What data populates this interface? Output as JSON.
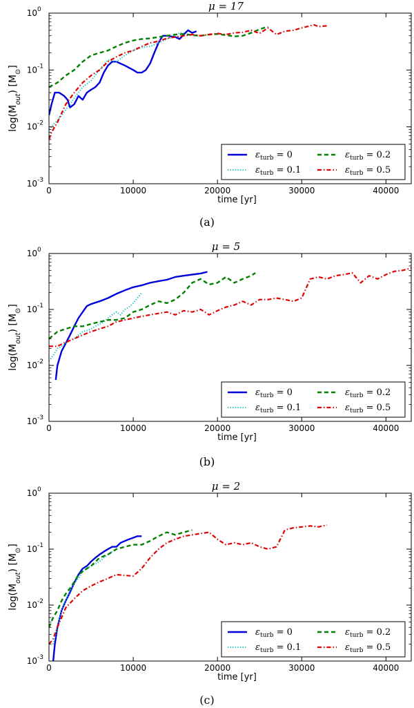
{
  "colors": {
    "eps0": "#0000dd",
    "eps01": "#00bfbf",
    "eps02": "#007f00",
    "eps05": "#e00000"
  },
  "common": {
    "xlabel": "time [yr]",
    "ylabel": "log(M_out) [M_sun]"
  },
  "chart_data": [
    {
      "type": "line",
      "title": "μ = 17",
      "caption": "(a)",
      "xlabel": "time [yr]",
      "ylabel": "log(M_out) [M_sun]",
      "yscale": "log",
      "xlim": [
        0,
        43000
      ],
      "ylim": [
        0.001,
        1
      ],
      "xticks": [
        0,
        10000,
        20000,
        30000,
        40000
      ],
      "xtick_labels": [
        "0",
        "10000",
        "20000",
        "30000",
        "40000"
      ],
      "ytick_labels": [
        "10",
        "10",
        "10",
        "10"
      ],
      "ytick_exponents": [
        "-3",
        "-2",
        "-1",
        "0"
      ],
      "legend": [
        {
          "label": "ε_turb = 0",
          "symbol": "ε",
          "sub": "turb",
          "value": " = 0"
        },
        {
          "label": "ε_turb = 0.2",
          "symbol": "ε",
          "sub": "turb",
          "value": " = 0.2"
        },
        {
          "label": "ε_turb = 0.1",
          "symbol": "ε",
          "sub": "turb",
          "value": " = 0.1"
        },
        {
          "label": "ε_turb = 0.5",
          "symbol": "ε",
          "sub": "turb",
          "value": " = 0.5"
        }
      ],
      "series": [
        {
          "name": "ε_turb = 0",
          "x": [
            0,
            300,
            700,
            1200,
            1800,
            2200,
            2500,
            3000,
            3500,
            4000,
            4500,
            5000,
            5500,
            6000,
            6500,
            7000,
            7500,
            8000,
            9000,
            10000,
            10500,
            11000,
            11500,
            12000,
            12500,
            13000,
            13500,
            14000,
            15000,
            15500,
            16000,
            16500,
            17000,
            17500
          ],
          "y": [
            0.016,
            0.025,
            0.04,
            0.04,
            0.035,
            0.03,
            0.022,
            0.025,
            0.035,
            0.03,
            0.04,
            0.045,
            0.05,
            0.06,
            0.09,
            0.12,
            0.14,
            0.14,
            0.12,
            0.1,
            0.09,
            0.09,
            0.1,
            0.13,
            0.2,
            0.3,
            0.4,
            0.4,
            0.38,
            0.35,
            0.42,
            0.5,
            0.45,
            0.48
          ]
        },
        {
          "name": "ε_turb = 0.1",
          "x": [
            0,
            500,
            1000,
            1500,
            2000,
            2500,
            3000,
            3500,
            4000,
            5000,
            6000,
            7000,
            8000,
            9000,
            10000,
            11000,
            12000,
            13000,
            14000,
            15000,
            15500,
            16000
          ],
          "y": [
            0.009,
            0.011,
            0.013,
            0.016,
            0.02,
            0.025,
            0.032,
            0.04,
            0.05,
            0.065,
            0.1,
            0.15,
            0.14,
            0.18,
            0.22,
            0.25,
            0.26,
            0.3,
            0.35,
            0.4,
            0.45,
            0.45
          ]
        },
        {
          "name": "ε_turb = 0.2",
          "x": [
            0,
            1000,
            2000,
            3000,
            4000,
            5000,
            6000,
            7000,
            8000,
            9000,
            10000,
            11000,
            12000,
            13000,
            14000,
            15000,
            16000,
            17000,
            18000,
            19000,
            20000,
            21000,
            22000,
            23000,
            24000,
            25000,
            26000
          ],
          "y": [
            0.05,
            0.06,
            0.08,
            0.1,
            0.14,
            0.18,
            0.2,
            0.22,
            0.26,
            0.3,
            0.33,
            0.35,
            0.36,
            0.38,
            0.4,
            0.42,
            0.43,
            0.41,
            0.4,
            0.42,
            0.43,
            0.41,
            0.39,
            0.4,
            0.45,
            0.52,
            0.58
          ]
        },
        {
          "name": "ε_turb = 0.5",
          "x": [
            0,
            300,
            1000,
            2000,
            3000,
            4000,
            5000,
            6000,
            7000,
            8000,
            9000,
            10000,
            11000,
            12000,
            13000,
            14000,
            15000,
            16000,
            17000,
            18000,
            19000,
            20000,
            21000,
            22000,
            23000,
            24000,
            25000,
            26000,
            27000,
            28000,
            29000,
            30000,
            31000,
            31500,
            32000,
            33000
          ],
          "y": [
            0.006,
            0.008,
            0.012,
            0.025,
            0.04,
            0.06,
            0.08,
            0.1,
            0.14,
            0.17,
            0.2,
            0.22,
            0.26,
            0.3,
            0.32,
            0.36,
            0.38,
            0.4,
            0.42,
            0.4,
            0.42,
            0.44,
            0.42,
            0.45,
            0.46,
            0.5,
            0.44,
            0.55,
            0.42,
            0.48,
            0.5,
            0.55,
            0.6,
            0.62,
            0.58,
            0.6
          ]
        }
      ]
    },
    {
      "type": "line",
      "title": "μ = 5",
      "caption": "(b)",
      "xlabel": "time [yr]",
      "ylabel": "log(M_out) [M_sun]",
      "yscale": "log",
      "xlim": [
        0,
        43000
      ],
      "ylim": [
        0.001,
        1
      ],
      "xticks": [
        0,
        10000,
        20000,
        30000,
        40000
      ],
      "xtick_labels": [
        "0",
        "10000",
        "20000",
        "30000",
        "40000"
      ],
      "ytick_labels": [
        "10",
        "10",
        "10",
        "10"
      ],
      "ytick_exponents": [
        "-3",
        "-2",
        "-1",
        "0"
      ],
      "legend": [
        {
          "label": "ε_turb = 0",
          "symbol": "ε",
          "sub": "turb",
          "value": " = 0"
        },
        {
          "label": "ε_turb = 0.2",
          "symbol": "ε",
          "sub": "turb",
          "value": " = 0.2"
        },
        {
          "label": "ε_turb = 0.1",
          "symbol": "ε",
          "sub": "turb",
          "value": " = 0.1"
        },
        {
          "label": "ε_turb = 0.5",
          "symbol": "ε",
          "sub": "turb",
          "value": " = 0.5"
        }
      ],
      "series": [
        {
          "name": "ε_turb = 0",
          "x": [
            800,
            1000,
            1500,
            2000,
            2500,
            3000,
            3500,
            4000,
            4500,
            5000,
            6000,
            7000,
            8000,
            9000,
            10000,
            11000,
            12000,
            13000,
            14000,
            15000,
            16000,
            17000,
            18000,
            18800
          ],
          "y": [
            0.0055,
            0.01,
            0.018,
            0.025,
            0.035,
            0.05,
            0.07,
            0.09,
            0.115,
            0.125,
            0.14,
            0.16,
            0.19,
            0.22,
            0.25,
            0.27,
            0.3,
            0.32,
            0.34,
            0.38,
            0.4,
            0.42,
            0.44,
            0.47
          ]
        },
        {
          "name": "ε_turb = 0.1",
          "x": [
            0,
            500,
            1000,
            1500,
            2000,
            2500,
            3000,
            3500,
            4000,
            4500,
            5000,
            5500,
            6000,
            6500,
            7000,
            7500,
            8000,
            8500,
            9000,
            9500,
            10000,
            10500,
            11000
          ],
          "y": [
            0.012,
            0.015,
            0.02,
            0.022,
            0.025,
            0.028,
            0.03,
            0.035,
            0.04,
            0.042,
            0.045,
            0.05,
            0.055,
            0.06,
            0.07,
            0.08,
            0.09,
            0.08,
            0.1,
            0.11,
            0.13,
            0.16,
            0.2
          ]
        },
        {
          "name": "ε_turb = 0.2",
          "x": [
            0,
            1000,
            2000,
            3000,
            4000,
            5000,
            6000,
            7000,
            8000,
            9000,
            10000,
            11000,
            12000,
            13000,
            14000,
            15000,
            16000,
            17000,
            18000,
            19000,
            20000,
            21000,
            22000,
            23000,
            24000,
            24500
          ],
          "y": [
            0.03,
            0.04,
            0.045,
            0.05,
            0.05,
            0.055,
            0.06,
            0.065,
            0.065,
            0.07,
            0.09,
            0.1,
            0.12,
            0.14,
            0.13,
            0.15,
            0.2,
            0.3,
            0.35,
            0.28,
            0.3,
            0.38,
            0.3,
            0.35,
            0.4,
            0.45
          ]
        },
        {
          "name": "ε_turb = 0.5",
          "x": [
            0,
            1000,
            2000,
            3000,
            4000,
            5000,
            6000,
            7000,
            8000,
            9000,
            10000,
            11000,
            12000,
            13000,
            14000,
            15000,
            16000,
            17000,
            18000,
            19000,
            20000,
            21000,
            22000,
            23000,
            24000,
            25000,
            26000,
            27000,
            28000,
            29000,
            30000,
            31000,
            32000,
            33000,
            34000,
            35000,
            36000,
            37000,
            38000,
            39000,
            40000,
            41000,
            42000,
            43000
          ],
          "y": [
            0.022,
            0.022,
            0.026,
            0.03,
            0.035,
            0.04,
            0.045,
            0.05,
            0.06,
            0.065,
            0.07,
            0.075,
            0.08,
            0.085,
            0.09,
            0.08,
            0.095,
            0.09,
            0.1,
            0.08,
            0.095,
            0.11,
            0.12,
            0.14,
            0.12,
            0.15,
            0.15,
            0.16,
            0.15,
            0.14,
            0.16,
            0.35,
            0.38,
            0.35,
            0.4,
            0.42,
            0.45,
            0.3,
            0.4,
            0.35,
            0.42,
            0.48,
            0.5,
            0.55
          ]
        }
      ]
    },
    {
      "type": "line",
      "title": "μ = 2",
      "caption": "(c)",
      "xlabel": "time [yr]",
      "ylabel": "log(M_out) [M_sun]",
      "yscale": "log",
      "xlim": [
        0,
        43000
      ],
      "ylim": [
        0.001,
        1
      ],
      "xticks": [
        0,
        10000,
        20000,
        30000,
        40000
      ],
      "xtick_labels": [
        "0",
        "10000",
        "20000",
        "30000",
        "40000"
      ],
      "ytick_labels": [
        "10",
        "10",
        "10",
        "10"
      ],
      "ytick_exponents": [
        "-3",
        "-2",
        "-1",
        "0"
      ],
      "legend": [
        {
          "label": "ε_turb = 0",
          "symbol": "ε",
          "sub": "turb",
          "value": " = 0"
        },
        {
          "label": "ε_turb = 0.2",
          "symbol": "ε",
          "sub": "turb",
          "value": " = 0.2"
        },
        {
          "label": "ε_turb = 0.1",
          "symbol": "ε",
          "sub": "turb",
          "value": " = 0.1"
        },
        {
          "label": "ε_turb = 0.5",
          "symbol": "ε",
          "sub": "turb",
          "value": " = 0.5"
        }
      ],
      "series": [
        {
          "name": "ε_turb = 0",
          "x": [
            500,
            700,
            1000,
            1500,
            2000,
            2500,
            3000,
            3500,
            4000,
            4500,
            5000,
            5500,
            6000,
            6500,
            7000,
            7500,
            8000,
            8500,
            9000,
            9500,
            10000,
            10500,
            11000
          ],
          "y": [
            0.001,
            0.002,
            0.004,
            0.008,
            0.012,
            0.017,
            0.025,
            0.035,
            0.045,
            0.05,
            0.06,
            0.07,
            0.08,
            0.09,
            0.1,
            0.11,
            0.11,
            0.13,
            0.14,
            0.15,
            0.16,
            0.17,
            0.17
          ]
        },
        {
          "name": "ε_turb = 0.1",
          "x": [
            500,
            1000,
            1500,
            2000,
            2500,
            3000,
            3500,
            4000,
            4500,
            5000,
            5500,
            6000,
            6500,
            7000,
            7500,
            8000
          ],
          "y": [
            0.002,
            0.004,
            0.008,
            0.012,
            0.018,
            0.025,
            0.03,
            0.04,
            0.045,
            0.05,
            0.055,
            0.06,
            0.07,
            0.08,
            0.09,
            0.1
          ]
        },
        {
          "name": "ε_turb = 0.2",
          "x": [
            0,
            500,
            1000,
            1500,
            2000,
            2500,
            3000,
            3500,
            4000,
            4500,
            5000,
            6000,
            7000,
            8000,
            9000,
            10000,
            11000,
            12000,
            13000,
            14000,
            15000,
            16000,
            17000
          ],
          "y": [
            0.004,
            0.006,
            0.008,
            0.012,
            0.016,
            0.02,
            0.026,
            0.035,
            0.04,
            0.045,
            0.05,
            0.07,
            0.08,
            0.1,
            0.11,
            0.12,
            0.12,
            0.14,
            0.17,
            0.2,
            0.18,
            0.2,
            0.22
          ]
        },
        {
          "name": "ε_turb = 0.5",
          "x": [
            0,
            500,
            1000,
            1500,
            2000,
            3000,
            4000,
            5000,
            6000,
            7000,
            8000,
            9000,
            10000,
            11000,
            12000,
            13000,
            14000,
            15000,
            16000,
            17000,
            18000,
            19000,
            20000,
            21000,
            22000,
            23000,
            24000,
            25000,
            26000,
            27000,
            28000,
            29000,
            30000,
            31000,
            32000,
            33000
          ],
          "y": [
            0.002,
            0.0025,
            0.004,
            0.006,
            0.009,
            0.013,
            0.018,
            0.022,
            0.026,
            0.03,
            0.035,
            0.034,
            0.033,
            0.045,
            0.07,
            0.1,
            0.13,
            0.15,
            0.17,
            0.18,
            0.19,
            0.2,
            0.15,
            0.12,
            0.13,
            0.12,
            0.13,
            0.11,
            0.1,
            0.11,
            0.22,
            0.24,
            0.25,
            0.26,
            0.25,
            0.27
          ]
        }
      ]
    }
  ]
}
